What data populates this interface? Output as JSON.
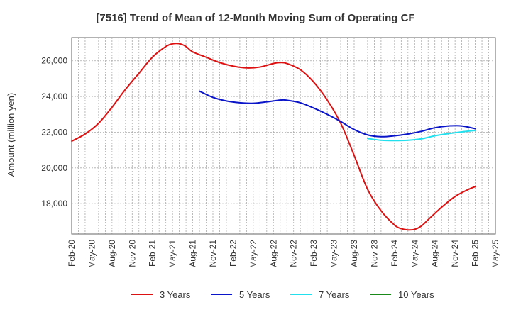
{
  "chart_data": {
    "type": "line",
    "title": "[7516]  Trend of Mean of 12-Month Moving Sum of Operating CF",
    "xlabel": "",
    "ylabel": "Amount (million yen)",
    "ylim": [
      16300,
      27300
    ],
    "yticks": [
      18000,
      20000,
      22000,
      24000,
      26000
    ],
    "ytick_labels": [
      "18,000",
      "20,000",
      "22,000",
      "24,000",
      "26,000"
    ],
    "xlim_month_index": [
      0,
      63
    ],
    "xticks": [
      {
        "label": "Feb-20",
        "m": 0
      },
      {
        "label": "May-20",
        "m": 3
      },
      {
        "label": "Aug-20",
        "m": 6
      },
      {
        "label": "Nov-20",
        "m": 9
      },
      {
        "label": "Feb-21",
        "m": 12
      },
      {
        "label": "May-21",
        "m": 15
      },
      {
        "label": "Aug-21",
        "m": 18
      },
      {
        "label": "Nov-21",
        "m": 21
      },
      {
        "label": "Feb-22",
        "m": 24
      },
      {
        "label": "May-22",
        "m": 27
      },
      {
        "label": "Aug-22",
        "m": 30
      },
      {
        "label": "Nov-22",
        "m": 33
      },
      {
        "label": "Feb-23",
        "m": 36
      },
      {
        "label": "May-23",
        "m": 39
      },
      {
        "label": "Aug-23",
        "m": 42
      },
      {
        "label": "Nov-23",
        "m": 45
      },
      {
        "label": "Feb-24",
        "m": 48
      },
      {
        "label": "May-24",
        "m": 51
      },
      {
        "label": "Aug-24",
        "m": 54
      },
      {
        "label": "Nov-24",
        "m": 57
      },
      {
        "label": "Feb-25",
        "m": 60
      },
      {
        "label": "May-25",
        "m": 63
      }
    ],
    "grid": true,
    "legend_position": "bottom",
    "series": [
      {
        "name": "3 Years",
        "color": "#dd1111",
        "points": [
          [
            0,
            21500
          ],
          [
            2,
            21900
          ],
          [
            4,
            22500
          ],
          [
            6,
            23400
          ],
          [
            8,
            24400
          ],
          [
            10,
            25300
          ],
          [
            12,
            26200
          ],
          [
            14,
            26800
          ],
          [
            15,
            26950
          ],
          [
            16,
            26960
          ],
          [
            17,
            26800
          ],
          [
            18,
            26500
          ],
          [
            20,
            26200
          ],
          [
            22,
            25900
          ],
          [
            24,
            25700
          ],
          [
            26,
            25600
          ],
          [
            28,
            25650
          ],
          [
            30,
            25850
          ],
          [
            31,
            25900
          ],
          [
            32,
            25850
          ],
          [
            34,
            25500
          ],
          [
            36,
            24800
          ],
          [
            38,
            23800
          ],
          [
            40,
            22500
          ],
          [
            42,
            20700
          ],
          [
            44,
            18800
          ],
          [
            46,
            17600
          ],
          [
            48,
            16800
          ],
          [
            49,
            16600
          ],
          [
            50,
            16530
          ],
          [
            51,
            16560
          ],
          [
            52,
            16750
          ],
          [
            53,
            17100
          ],
          [
            55,
            17800
          ],
          [
            57,
            18400
          ],
          [
            59,
            18800
          ],
          [
            60,
            18950
          ]
        ]
      },
      {
        "name": "5 Years",
        "color": "#0a14c8",
        "points": [
          [
            19,
            24300
          ],
          [
            21,
            23950
          ],
          [
            23,
            23750
          ],
          [
            25,
            23650
          ],
          [
            27,
            23620
          ],
          [
            29,
            23700
          ],
          [
            31,
            23800
          ],
          [
            32,
            23790
          ],
          [
            34,
            23650
          ],
          [
            36,
            23350
          ],
          [
            38,
            23000
          ],
          [
            40,
            22600
          ],
          [
            42,
            22150
          ],
          [
            44,
            21850
          ],
          [
            46,
            21750
          ],
          [
            48,
            21800
          ],
          [
            50,
            21900
          ],
          [
            52,
            22050
          ],
          [
            54,
            22250
          ],
          [
            56,
            22350
          ],
          [
            58,
            22350
          ],
          [
            60,
            22200
          ]
        ]
      },
      {
        "name": "7 Years",
        "color": "#22e0ee",
        "points": [
          [
            44,
            21650
          ],
          [
            46,
            21550
          ],
          [
            48,
            21530
          ],
          [
            50,
            21550
          ],
          [
            52,
            21630
          ],
          [
            54,
            21800
          ],
          [
            56,
            21920
          ],
          [
            58,
            22020
          ],
          [
            60,
            22100
          ]
        ]
      },
      {
        "name": "10 Years",
        "color": "#1a8a1a",
        "points": []
      }
    ]
  }
}
